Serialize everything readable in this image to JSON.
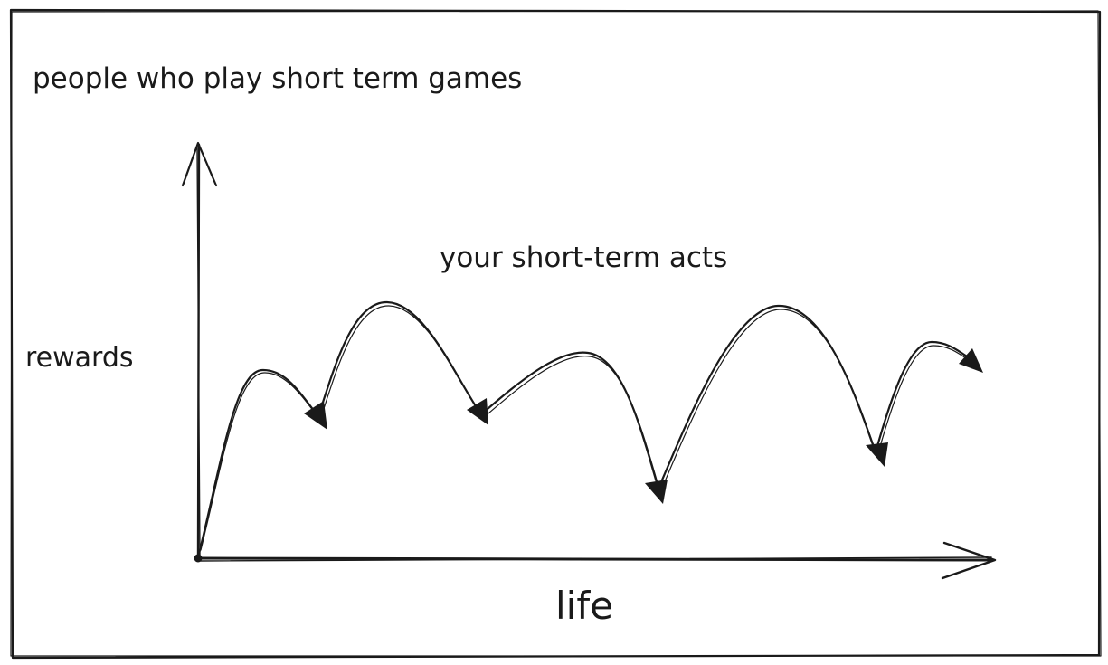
{
  "diagram": {
    "title": "people who play short term games",
    "y_axis_label": "rewards",
    "x_axis_label": "life",
    "curve_label": "your short-term acts",
    "ink_color": "#1a1a1a",
    "background_color": "#ffffff"
  }
}
